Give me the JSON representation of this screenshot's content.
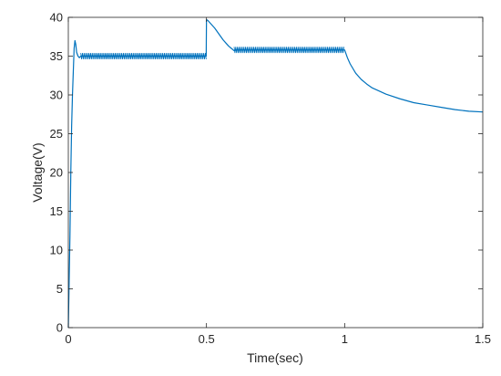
{
  "chart_data": {
    "type": "line",
    "title": "",
    "xlabel": "Time(sec)",
    "ylabel": "Voltage(V)",
    "xlim": [
      0,
      1.5
    ],
    "ylim": [
      0,
      40
    ],
    "x_ticks": [
      "0",
      "0.5",
      "1",
      "1.5"
    ],
    "y_ticks": [
      "0",
      "5",
      "10",
      "15",
      "20",
      "25",
      "30",
      "35",
      "40"
    ],
    "grid": false,
    "legend": "none",
    "line_color": "#0072bd",
    "series": [
      {
        "x": [
          0,
          0.003,
          0.006,
          0.009,
          0.012,
          0.015,
          0.018,
          0.021,
          0.024,
          0.027,
          0.03,
          0.035,
          0.04,
          0.045,
          0.05,
          0.06,
          0.08,
          0.1,
          0.15,
          0.2,
          0.25,
          0.3,
          0.35,
          0.4,
          0.45,
          0.499,
          0.5,
          0.505,
          0.51,
          0.52,
          0.53,
          0.54,
          0.55,
          0.56,
          0.57,
          0.58,
          0.59,
          0.6,
          0.61,
          0.62,
          0.65,
          0.7,
          0.75,
          0.8,
          0.85,
          0.9,
          0.95,
          0.999,
          1.0,
          1.01,
          1.02,
          1.04,
          1.06,
          1.08,
          1.1,
          1.15,
          1.2,
          1.25,
          1.3,
          1.35,
          1.4,
          1.45,
          1.5
        ],
        "y": [
          0,
          6,
          12,
          20,
          26,
          30,
          33,
          36,
          37,
          36.5,
          35.5,
          35,
          34.8,
          35,
          35,
          35,
          35,
          35,
          35,
          35,
          35,
          35,
          35,
          35,
          35,
          35,
          39.7,
          39.6,
          39.4,
          39.0,
          38.6,
          38.1,
          37.6,
          37.1,
          36.7,
          36.3,
          36.0,
          35.7,
          35.8,
          35.8,
          35.8,
          35.8,
          35.8,
          35.8,
          35.8,
          35.8,
          35.8,
          35.8,
          35.8,
          34.8,
          34.0,
          32.8,
          32.0,
          31.4,
          30.9,
          30.1,
          29.5,
          29.0,
          28.7,
          28.4,
          28.1,
          27.9,
          27.8
        ]
      }
    ],
    "ripple_bands": [
      {
        "from": 0.045,
        "to": 0.5,
        "low": 34.6,
        "high": 35.4
      },
      {
        "from": 0.6,
        "to": 1.0,
        "low": 35.4,
        "high": 36.2
      }
    ]
  }
}
